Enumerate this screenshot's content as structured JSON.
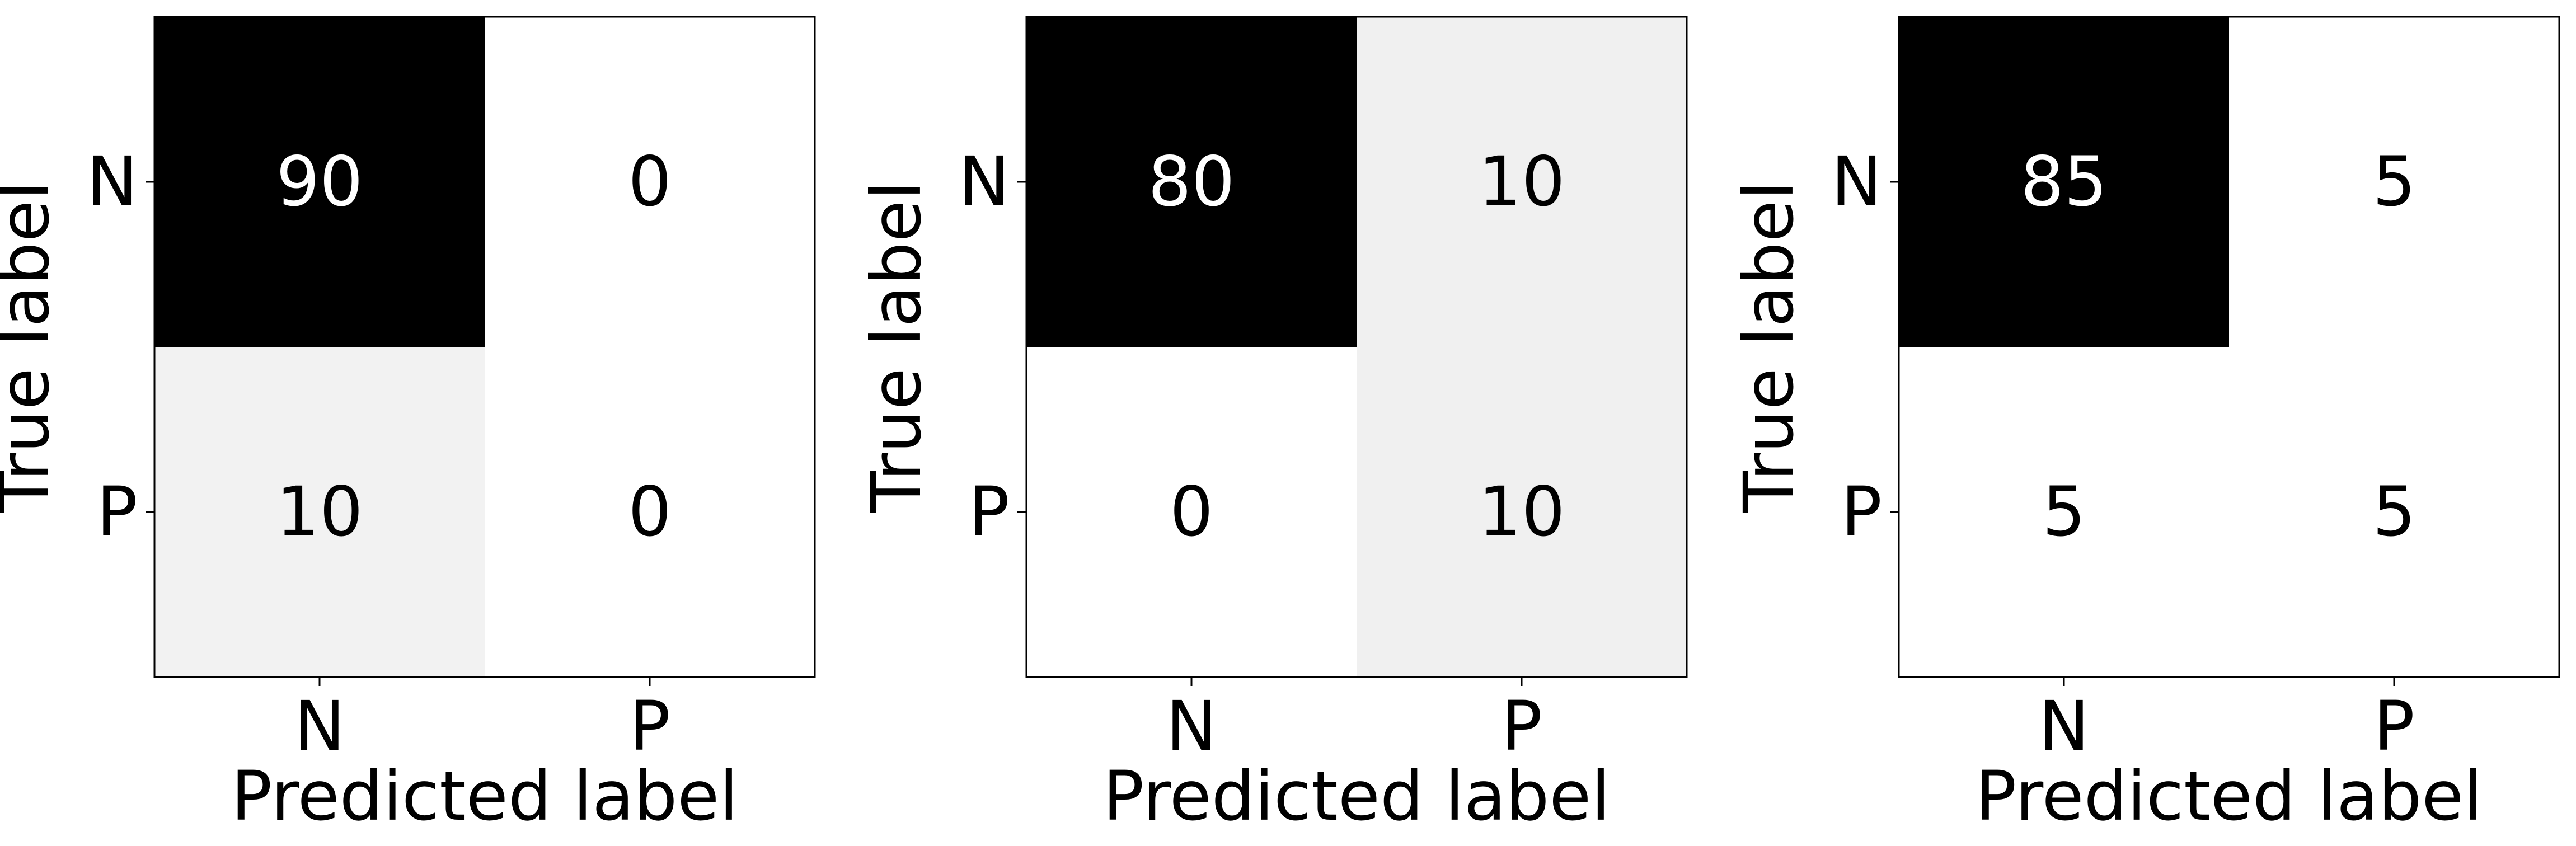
{
  "chart_data": [
    {
      "type": "heatmap",
      "colormap": "Greys",
      "xlabel": "Predicted label",
      "ylabel": "True label",
      "x_categories": [
        "N",
        "P"
      ],
      "y_categories": [
        "N",
        "P"
      ],
      "values": [
        [
          90,
          0
        ],
        [
          10,
          0
        ]
      ],
      "vmin": 0,
      "vmax": 90
    },
    {
      "type": "heatmap",
      "colormap": "Greys",
      "xlabel": "Predicted label",
      "ylabel": "True label",
      "x_categories": [
        "N",
        "P"
      ],
      "y_categories": [
        "N",
        "P"
      ],
      "values": [
        [
          80,
          10
        ],
        [
          0,
          10
        ]
      ],
      "vmin": 0,
      "vmax": 80
    },
    {
      "type": "heatmap",
      "colormap": "Greys",
      "xlabel": "Predicted label",
      "ylabel": "True label",
      "x_categories": [
        "N",
        "P"
      ],
      "y_categories": [
        "N",
        "P"
      ],
      "values": [
        [
          85,
          5
        ],
        [
          5,
          5
        ]
      ],
      "vmin": 5,
      "vmax": 85
    }
  ]
}
